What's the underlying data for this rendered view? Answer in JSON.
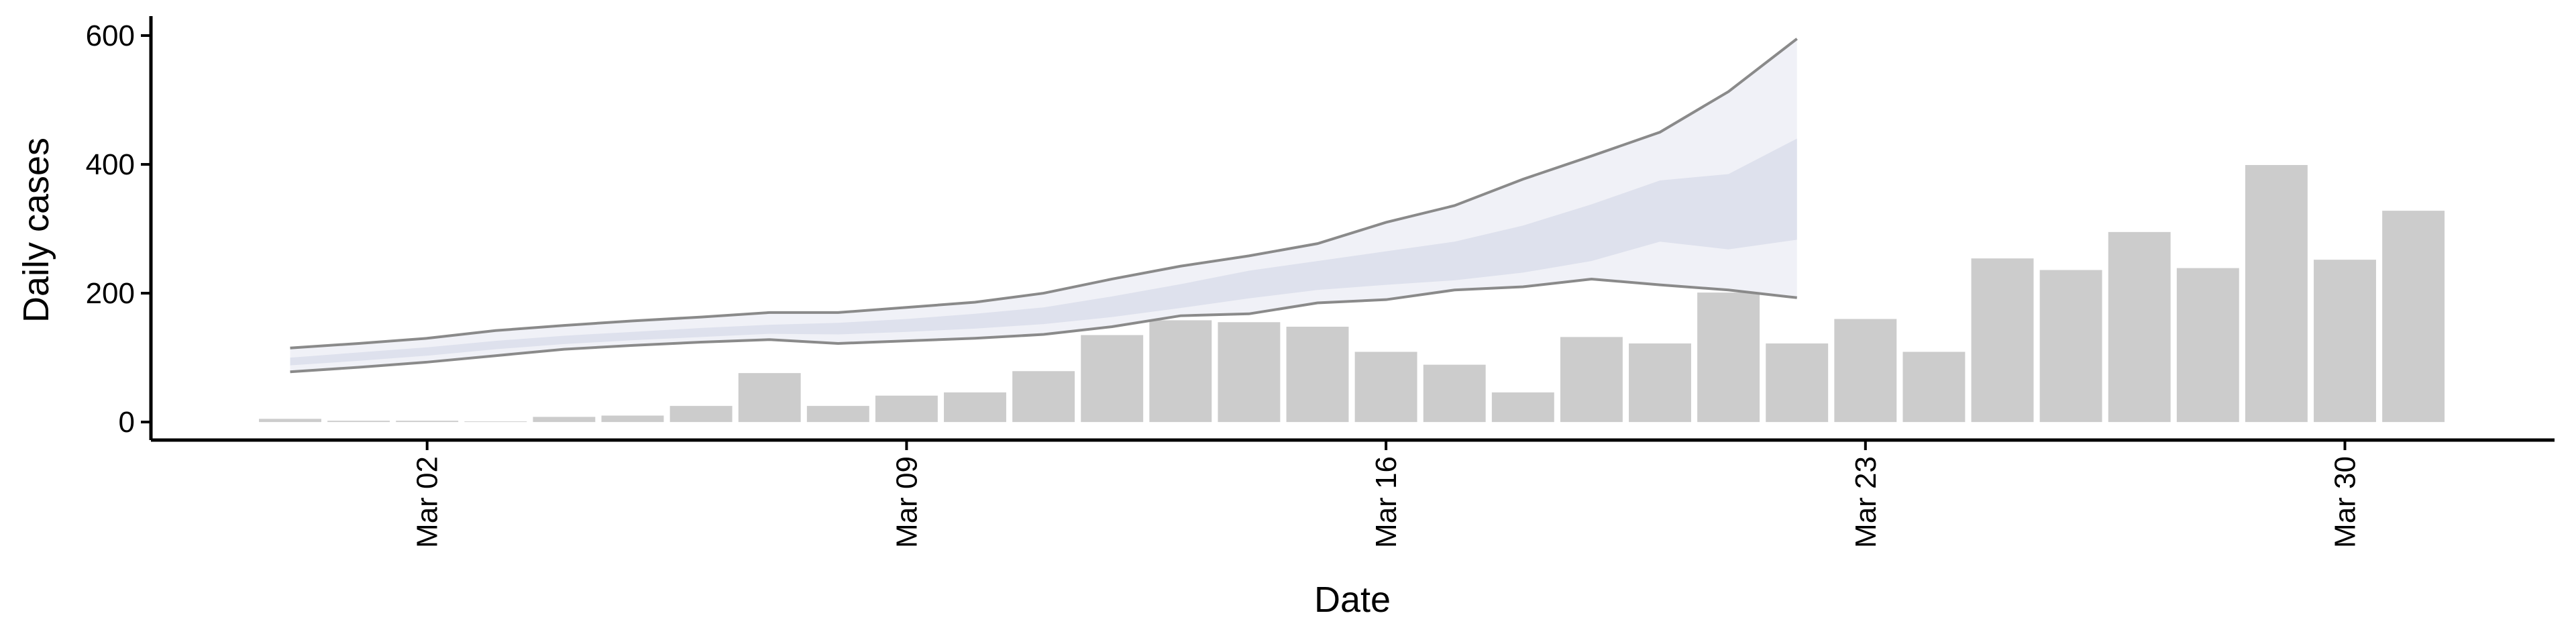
{
  "chart_data": {
    "type": "bar",
    "x_label": "Date",
    "y_label": "Daily cases",
    "x": [
      "Feb 29",
      "Mar 01",
      "Mar 02",
      "Mar 03",
      "Mar 04",
      "Mar 05",
      "Mar 06",
      "Mar 07",
      "Mar 08",
      "Mar 09",
      "Mar 10",
      "Mar 11",
      "Mar 12",
      "Mar 13",
      "Mar 14",
      "Mar 15",
      "Mar 16",
      "Mar 17",
      "Mar 18",
      "Mar 19",
      "Mar 20",
      "Mar 21",
      "Mar 22",
      "Mar 23",
      "Mar 24",
      "Mar 25",
      "Mar 26",
      "Mar 27",
      "Mar 28",
      "Mar 29",
      "Mar 30",
      "Mar 31"
    ],
    "values": [
      5,
      2,
      2,
      1,
      8,
      10,
      25,
      76,
      25,
      41,
      46,
      79,
      135,
      158,
      155,
      148,
      109,
      89,
      46,
      132,
      122,
      201,
      122,
      160,
      109,
      254,
      236,
      295,
      239,
      399,
      252,
      328
    ],
    "color": "#cccccc",
    "xticks": [
      "Mar 02",
      "Mar 09",
      "Mar 16",
      "Mar 23",
      "Mar 30"
    ],
    "ylim": [
      -28,
      625
    ],
    "yticks": [
      0,
      200,
      400,
      600
    ],
    "grid": false,
    "forecast": {
      "type": "band",
      "x": [
        "Feb 29",
        "Mar 01",
        "Mar 02",
        "Mar 03",
        "Mar 04",
        "Mar 05",
        "Mar 06",
        "Mar 07",
        "Mar 08",
        "Mar 09",
        "Mar 10",
        "Mar 11",
        "Mar 12",
        "Mar 13",
        "Mar 14",
        "Mar 15",
        "Mar 16",
        "Mar 17",
        "Mar 18",
        "Mar 19",
        "Mar 20",
        "Mar 21",
        "Mar 22"
      ],
      "upper": [
        115,
        122,
        130,
        142,
        150,
        157,
        163,
        170,
        170,
        178,
        186,
        200,
        222,
        242,
        258,
        277,
        310,
        336,
        377,
        413,
        450,
        513,
        595
      ],
      "lower": [
        78,
        85,
        93,
        103,
        113,
        119,
        124,
        128,
        122,
        126,
        130,
        136,
        148,
        165,
        168,
        185,
        190,
        205,
        210,
        222,
        213,
        205,
        193
      ],
      "inner_upper": [
        100,
        108,
        116,
        126,
        134,
        140,
        146,
        151,
        154,
        160,
        168,
        178,
        195,
        214,
        235,
        250,
        265,
        280,
        305,
        338,
        375,
        385,
        440
      ],
      "inner_lower": [
        88,
        95,
        103,
        113,
        121,
        127,
        132,
        137,
        136,
        140,
        145,
        152,
        163,
        177,
        192,
        205,
        213,
        220,
        232,
        250,
        280,
        268,
        283
      ],
      "outer_color": "#eef0f6",
      "inner_color": "#d9ddea",
      "line_color": "#8a8a8a"
    }
  }
}
